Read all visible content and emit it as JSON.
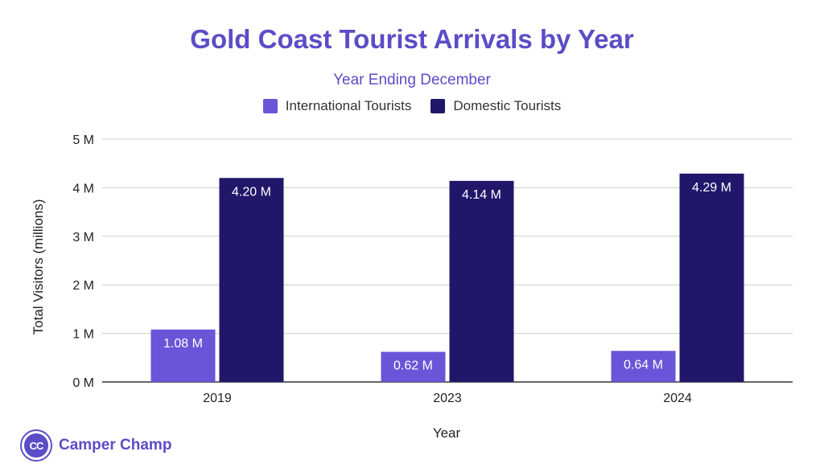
{
  "chart_data": {
    "type": "bar",
    "title": "Gold Coast Tourist Arrivals by Year",
    "subtitle": "Year Ending December",
    "xlabel": "Year",
    "ylabel": "Total Visitors (millions)",
    "categories": [
      "2019",
      "2023",
      "2024"
    ],
    "series": [
      {
        "name": "International Tourists",
        "values": [
          1.08,
          0.62,
          0.64
        ],
        "labels": [
          "1.08 M",
          "0.62 M",
          "0.64 M"
        ],
        "color": "#6a55d8"
      },
      {
        "name": "Domestic Tourists",
        "values": [
          4.2,
          4.14,
          4.29
        ],
        "labels": [
          "4.20 M",
          "4.14 M",
          "4.29 M"
        ],
        "color": "#21176a"
      }
    ],
    "ylim": [
      0,
      5
    ],
    "yticks": [
      0,
      1,
      2,
      3,
      4,
      5
    ],
    "ytick_labels": [
      "0 M",
      "1 M",
      "2 M",
      "3 M",
      "4 M",
      "5 M"
    ],
    "grid": true,
    "legend": "top-center"
  },
  "brand": {
    "logo_text": "CC",
    "name": "Camper Champ",
    "color": "#5b4dc7"
  }
}
